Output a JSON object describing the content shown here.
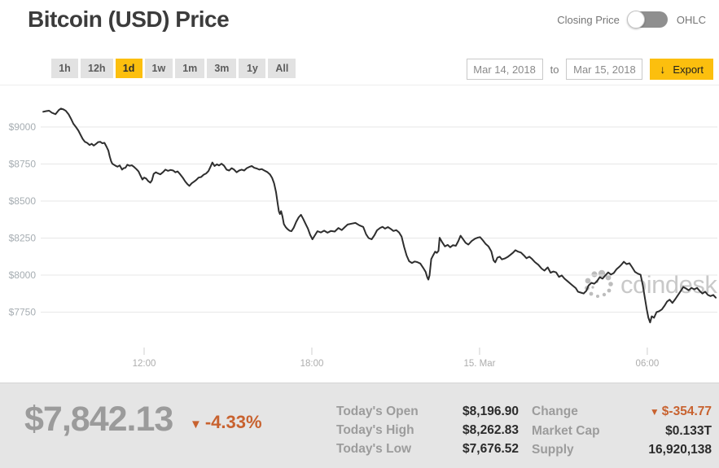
{
  "header": {
    "title": "Bitcoin (USD) Price",
    "toggle": {
      "left_label": "Closing Price",
      "right_label": "OHLC",
      "selected": "Closing Price"
    }
  },
  "controls": {
    "ranges": [
      "1h",
      "12h",
      "1d",
      "1w",
      "1m",
      "3m",
      "1y",
      "All"
    ],
    "active_range": "1d",
    "date_from": "Mar 14, 2018",
    "to_label": "to",
    "date_to": "Mar 15, 2018",
    "export_label": "Export",
    "export_icon": "↓"
  },
  "chart_data": {
    "type": "line",
    "title": "Bitcoin (USD) Price",
    "grid": true,
    "legend": "none",
    "line_color": "#2e2e2e",
    "watermark": "coindesk",
    "x_unit": "hours since 2018-03-14 00:00",
    "x_range": [
      8.3,
      32.5
    ],
    "y_range": [
      7600,
      9150
    ],
    "x_ticks": [
      {
        "value": 12,
        "label": "12:00"
      },
      {
        "value": 18,
        "label": "18:00"
      },
      {
        "value": 24,
        "label": "15. Mar"
      },
      {
        "value": 30,
        "label": "06:00"
      }
    ],
    "y_ticks": [
      {
        "value": 9000,
        "label": "$9000"
      },
      {
        "value": 8750,
        "label": "$8750"
      },
      {
        "value": 8500,
        "label": "$8500"
      },
      {
        "value": 8250,
        "label": "$8250"
      },
      {
        "value": 8000,
        "label": "$8000"
      },
      {
        "value": 7750,
        "label": "$7750"
      }
    ],
    "series": [
      {
        "name": "Closing Price (USD)",
        "points": [
          [
            8.39,
            9103
          ],
          [
            8.5,
            9107
          ],
          [
            8.6,
            9110
          ],
          [
            8.7,
            9096
          ],
          [
            8.83,
            9086
          ],
          [
            8.95,
            9115
          ],
          [
            9.03,
            9124
          ],
          [
            9.12,
            9118
          ],
          [
            9.2,
            9109
          ],
          [
            9.3,
            9085
          ],
          [
            9.4,
            9050
          ],
          [
            9.47,
            9022
          ],
          [
            9.56,
            9000
          ],
          [
            9.65,
            8975
          ],
          [
            9.73,
            8945
          ],
          [
            9.8,
            8920
          ],
          [
            9.88,
            8900
          ],
          [
            9.96,
            8893
          ],
          [
            10.05,
            8878
          ],
          [
            10.12,
            8886
          ],
          [
            10.2,
            8874
          ],
          [
            10.28,
            8886
          ],
          [
            10.35,
            8898
          ],
          [
            10.43,
            8900
          ],
          [
            10.5,
            8890
          ],
          [
            10.58,
            8893
          ],
          [
            10.65,
            8868
          ],
          [
            10.72,
            8840
          ],
          [
            10.77,
            8800
          ],
          [
            10.82,
            8768
          ],
          [
            10.86,
            8752
          ],
          [
            10.91,
            8746
          ],
          [
            10.98,
            8738
          ],
          [
            11.05,
            8732
          ],
          [
            11.13,
            8740
          ],
          [
            11.21,
            8712
          ],
          [
            11.27,
            8722
          ],
          [
            11.33,
            8724
          ],
          [
            11.4,
            8745
          ],
          [
            11.48,
            8738
          ],
          [
            11.56,
            8741
          ],
          [
            11.64,
            8730
          ],
          [
            11.72,
            8716
          ],
          [
            11.8,
            8700
          ],
          [
            11.87,
            8672
          ],
          [
            11.94,
            8645
          ],
          [
            12.0,
            8658
          ],
          [
            12.07,
            8652
          ],
          [
            12.15,
            8634
          ],
          [
            12.22,
            8624
          ],
          [
            12.28,
            8640
          ],
          [
            12.34,
            8683
          ],
          [
            12.42,
            8694
          ],
          [
            12.5,
            8686
          ],
          [
            12.58,
            8680
          ],
          [
            12.67,
            8694
          ],
          [
            12.76,
            8712
          ],
          [
            12.85,
            8704
          ],
          [
            12.95,
            8710
          ],
          [
            13.04,
            8706
          ],
          [
            13.12,
            8694
          ],
          [
            13.2,
            8700
          ],
          [
            13.29,
            8680
          ],
          [
            13.38,
            8658
          ],
          [
            13.47,
            8632
          ],
          [
            13.55,
            8614
          ],
          [
            13.62,
            8602
          ],
          [
            13.7,
            8620
          ],
          [
            13.78,
            8630
          ],
          [
            13.86,
            8642
          ],
          [
            13.95,
            8658
          ],
          [
            14.04,
            8662
          ],
          [
            14.13,
            8678
          ],
          [
            14.22,
            8686
          ],
          [
            14.3,
            8702
          ],
          [
            14.38,
            8734
          ],
          [
            14.44,
            8760
          ],
          [
            14.52,
            8736
          ],
          [
            14.6,
            8748
          ],
          [
            14.68,
            8740
          ],
          [
            14.77,
            8752
          ],
          [
            14.86,
            8738
          ],
          [
            14.95,
            8712
          ],
          [
            15.04,
            8706
          ],
          [
            15.13,
            8722
          ],
          [
            15.22,
            8712
          ],
          [
            15.31,
            8694
          ],
          [
            15.4,
            8706
          ],
          [
            15.49,
            8712
          ],
          [
            15.58,
            8706
          ],
          [
            15.67,
            8722
          ],
          [
            15.76,
            8730
          ],
          [
            15.85,
            8736
          ],
          [
            15.94,
            8724
          ],
          [
            16.03,
            8720
          ],
          [
            16.12,
            8712
          ],
          [
            16.21,
            8716
          ],
          [
            16.3,
            8706
          ],
          [
            16.4,
            8696
          ],
          [
            16.5,
            8680
          ],
          [
            16.58,
            8656
          ],
          [
            16.65,
            8620
          ],
          [
            16.72,
            8560
          ],
          [
            16.78,
            8480
          ],
          [
            16.82,
            8430
          ],
          [
            16.86,
            8412
          ],
          [
            16.9,
            8432
          ],
          [
            16.95,
            8396
          ],
          [
            17.0,
            8345
          ],
          [
            17.06,
            8325
          ],
          [
            17.12,
            8312
          ],
          [
            17.2,
            8300
          ],
          [
            17.27,
            8296
          ],
          [
            17.35,
            8320
          ],
          [
            17.44,
            8360
          ],
          [
            17.53,
            8390
          ],
          [
            17.61,
            8407
          ],
          [
            17.69,
            8380
          ],
          [
            17.77,
            8348
          ],
          [
            17.86,
            8314
          ],
          [
            17.94,
            8272
          ],
          [
            18.02,
            8242
          ],
          [
            18.1,
            8266
          ],
          [
            18.2,
            8296
          ],
          [
            18.32,
            8288
          ],
          [
            18.44,
            8300
          ],
          [
            18.56,
            8286
          ],
          [
            18.68,
            8298
          ],
          [
            18.82,
            8294
          ],
          [
            18.95,
            8318
          ],
          [
            19.07,
            8304
          ],
          [
            19.18,
            8324
          ],
          [
            19.28,
            8341
          ],
          [
            19.42,
            8347
          ],
          [
            19.56,
            8352
          ],
          [
            19.7,
            8336
          ],
          [
            19.84,
            8325
          ],
          [
            19.94,
            8276
          ],
          [
            20.03,
            8250
          ],
          [
            20.14,
            8242
          ],
          [
            20.24,
            8270
          ],
          [
            20.33,
            8302
          ],
          [
            20.44,
            8318
          ],
          [
            20.53,
            8326
          ],
          [
            20.62,
            8314
          ],
          [
            20.72,
            8324
          ],
          [
            20.82,
            8312
          ],
          [
            20.92,
            8298
          ],
          [
            21.02,
            8304
          ],
          [
            21.12,
            8288
          ],
          [
            21.21,
            8260
          ],
          [
            21.3,
            8190
          ],
          [
            21.39,
            8132
          ],
          [
            21.48,
            8094
          ],
          [
            21.58,
            8082
          ],
          [
            21.68,
            8092
          ],
          [
            21.77,
            8088
          ],
          [
            21.88,
            8078
          ],
          [
            21.98,
            8050
          ],
          [
            22.07,
            8022
          ],
          [
            22.13,
            7984
          ],
          [
            22.17,
            7970
          ],
          [
            22.21,
            7998
          ],
          [
            22.27,
            8108
          ],
          [
            22.34,
            8134
          ],
          [
            22.41,
            8158
          ],
          [
            22.47,
            8150
          ],
          [
            22.53,
            8164
          ],
          [
            22.57,
            8252
          ],
          [
            22.65,
            8226
          ],
          [
            22.76,
            8194
          ],
          [
            22.86,
            8204
          ],
          [
            22.95,
            8188
          ],
          [
            23.05,
            8202
          ],
          [
            23.15,
            8198
          ],
          [
            23.24,
            8230
          ],
          [
            23.32,
            8266
          ],
          [
            23.42,
            8240
          ],
          [
            23.5,
            8218
          ],
          [
            23.6,
            8206
          ],
          [
            23.72,
            8230
          ],
          [
            23.84,
            8246
          ],
          [
            23.95,
            8254
          ],
          [
            24.02,
            8256
          ],
          [
            24.12,
            8234
          ],
          [
            24.22,
            8210
          ],
          [
            24.32,
            8194
          ],
          [
            24.42,
            8160
          ],
          [
            24.5,
            8100
          ],
          [
            24.56,
            8086
          ],
          [
            24.64,
            8118
          ],
          [
            24.72,
            8124
          ],
          [
            24.8,
            8106
          ],
          [
            24.9,
            8112
          ],
          [
            25.0,
            8122
          ],
          [
            25.1,
            8136
          ],
          [
            25.2,
            8152
          ],
          [
            25.28,
            8168
          ],
          [
            25.38,
            8158
          ],
          [
            25.48,
            8152
          ],
          [
            25.58,
            8134
          ],
          [
            25.68,
            8114
          ],
          [
            25.78,
            8124
          ],
          [
            25.88,
            8108
          ],
          [
            25.98,
            8088
          ],
          [
            26.1,
            8070
          ],
          [
            26.22,
            8044
          ],
          [
            26.32,
            8030
          ],
          [
            26.44,
            8052
          ],
          [
            26.54,
            8016
          ],
          [
            26.64,
            8024
          ],
          [
            26.74,
            8018
          ],
          [
            26.84,
            7988
          ],
          [
            26.94,
            7998
          ],
          [
            27.04,
            7976
          ],
          [
            27.14,
            7960
          ],
          [
            27.24,
            7944
          ],
          [
            27.34,
            7928
          ],
          [
            27.44,
            7912
          ],
          [
            27.52,
            7888
          ],
          [
            27.62,
            7882
          ],
          [
            27.72,
            7876
          ],
          [
            27.82,
            7894
          ],
          [
            27.9,
            7930
          ],
          [
            28.0,
            7948
          ],
          [
            28.1,
            7942
          ],
          [
            28.2,
            7958
          ],
          [
            28.3,
            7986
          ],
          [
            28.4,
            7976
          ],
          [
            28.5,
            7998
          ],
          [
            28.6,
            8018
          ],
          [
            28.7,
            8004
          ],
          [
            28.8,
            8014
          ],
          [
            28.9,
            8040
          ],
          [
            29.0,
            8056
          ],
          [
            29.08,
            8072
          ],
          [
            29.16,
            8090
          ],
          [
            29.26,
            8074
          ],
          [
            29.36,
            8080
          ],
          [
            29.46,
            8052
          ],
          [
            29.56,
            8022
          ],
          [
            29.66,
            8010
          ],
          [
            29.76,
            8002
          ],
          [
            29.84,
            7932
          ],
          [
            29.92,
            7838
          ],
          [
            29.98,
            7768
          ],
          [
            30.04,
            7712
          ],
          [
            30.1,
            7680
          ],
          [
            30.16,
            7722
          ],
          [
            30.24,
            7712
          ],
          [
            30.33,
            7750
          ],
          [
            30.42,
            7756
          ],
          [
            30.52,
            7768
          ],
          [
            30.62,
            7794
          ],
          [
            30.71,
            7822
          ],
          [
            30.8,
            7834
          ],
          [
            30.9,
            7812
          ],
          [
            31.0,
            7838
          ],
          [
            31.1,
            7866
          ],
          [
            31.2,
            7894
          ],
          [
            31.29,
            7920
          ],
          [
            31.38,
            7910
          ],
          [
            31.48,
            7898
          ],
          [
            31.58,
            7914
          ],
          [
            31.68,
            7904
          ],
          [
            31.78,
            7914
          ],
          [
            31.88,
            7892
          ],
          [
            31.97,
            7876
          ],
          [
            32.07,
            7888
          ],
          [
            32.17,
            7866
          ],
          [
            32.26,
            7858
          ],
          [
            32.36,
            7866
          ],
          [
            32.45,
            7848
          ]
        ]
      }
    ]
  },
  "footer": {
    "price": "$7,842.13",
    "arrow": "▼",
    "change_pct": "-4.33%",
    "stats_left": [
      {
        "label": "Today's Open",
        "value": "$8,196.90"
      },
      {
        "label": "Today's High",
        "value": "$8,262.83"
      },
      {
        "label": "Today's Low",
        "value": "$7,676.52"
      }
    ],
    "stats_right": [
      {
        "label": "Change",
        "value": "$-354.77",
        "direction": "down"
      },
      {
        "label": "Market Cap",
        "value": "$0.133T"
      },
      {
        "label": "Supply",
        "value": "16,920,138"
      }
    ]
  },
  "colors": {
    "accent_yellow": "#fcbf0e",
    "negative_orange": "#c8622f",
    "line": "#2e2e2e",
    "footer_bg": "#e5e5e5",
    "muted_gray": "#9b9b9b"
  }
}
